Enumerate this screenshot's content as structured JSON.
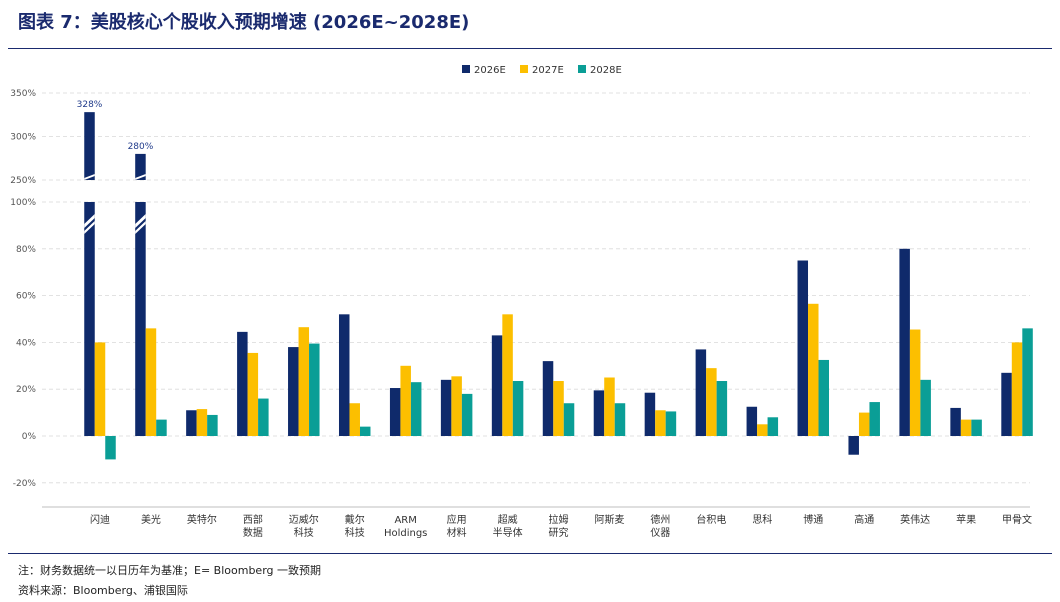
{
  "title": "图表 7：美股核心个股收入预期增速 (2026E~2028E)",
  "notes": {
    "line1": "注：财务数据统一以日历年为基准；E= Bloomberg 一致预期",
    "line2": "资料来源：Bloomberg、浦银国际"
  },
  "chart_data": {
    "type": "bar",
    "yaxis": {
      "broken": true,
      "lower_range": [
        -30,
        100
      ],
      "upper_range": [
        250,
        350
      ],
      "tick_labels": [
        "350%",
        "300%",
        "250%",
        "100%",
        "80%",
        "60%",
        "40%",
        "20%",
        "0%",
        "-20%"
      ]
    },
    "categories": [
      "闪迪",
      "美光",
      "英特尔",
      "西部\n数据",
      "迈威尔\n科技",
      "戴尔\n科技",
      "ARM\nHoldings",
      "应用\n材料",
      "超威\n半导体",
      "拉姆\n研究",
      "阿斯麦",
      "德州\n仪器",
      "台积电",
      "思科",
      "博通",
      "高通",
      "英伟达",
      "苹果",
      "甲骨文"
    ],
    "series": [
      {
        "name": "2026E",
        "color": "#0f2a6b",
        "values": [
          328,
          280,
          11,
          44.5,
          38,
          52,
          20.5,
          24,
          43,
          32,
          19.5,
          18.5,
          37,
          12.5,
          75,
          -8,
          80,
          12,
          27
        ]
      },
      {
        "name": "2027E",
        "color": "#fcbf00",
        "values": [
          40,
          46,
          11.5,
          35.5,
          46.5,
          14,
          30,
          25.5,
          52,
          23.5,
          25,
          11,
          29,
          5,
          56.5,
          10,
          45.5,
          7,
          40
        ]
      },
      {
        "name": "2028E",
        "color": "#0a9e96",
        "values": [
          -10,
          7,
          9,
          16,
          39.5,
          4,
          23,
          18,
          23.5,
          14,
          14,
          10.5,
          23.5,
          8,
          32.5,
          14.5,
          24,
          7,
          46
        ]
      }
    ],
    "data_labels": [
      {
        "category": "闪迪",
        "series": "2026E",
        "text": "328%"
      },
      {
        "category": "美光",
        "series": "2026E",
        "text": "280%"
      }
    ],
    "legend": "top-center",
    "grid": true
  }
}
